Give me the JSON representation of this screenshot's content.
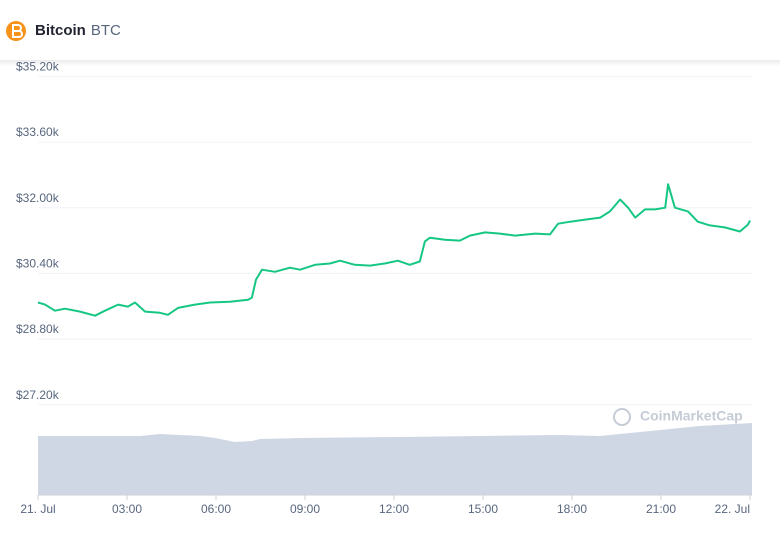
{
  "header": {
    "name": "Bitcoin",
    "symbol": "BTC"
  },
  "chart_data": {
    "type": "line",
    "watermark": "CoinMarketCap",
    "x": [
      0,
      0.24,
      0.57,
      0.91,
      1.42,
      1.92,
      2.26,
      2.7,
      3.03,
      3.27,
      3.61,
      4.11,
      4.38,
      4.72,
      5.29,
      5.8,
      6.47,
      7.08,
      7.21,
      7.35,
      7.55,
      7.99,
      8.49,
      8.83,
      9.34,
      9.84,
      10.18,
      10.68,
      11.19,
      11.69,
      12.13,
      12.53,
      12.87,
      13.04,
      13.21,
      13.72,
      14.22,
      14.56,
      15.07,
      15.57,
      16.08,
      16.76,
      17.26,
      17.53,
      17.94,
      18.44,
      18.95,
      19.28,
      19.62,
      19.89,
      20.13,
      20.46,
      20.8,
      21.14,
      21.24,
      21.47,
      21.91,
      22.24,
      22.65,
      23.15,
      23.66,
      23.93,
      24
    ],
    "series": [
      {
        "color": "#16c784",
        "values": [
          29690,
          29640,
          29490,
          29540,
          29470,
          29370,
          29490,
          29640,
          29590,
          29690,
          29470,
          29440,
          29390,
          29560,
          29640,
          29690,
          29710,
          29760,
          29810,
          30250,
          30490,
          30440,
          30540,
          30490,
          30610,
          30640,
          30710,
          30610,
          30590,
          30640,
          30710,
          30610,
          30690,
          31180,
          31270,
          31220,
          31200,
          31320,
          31400,
          31370,
          31320,
          31370,
          31350,
          31610,
          31660,
          31710,
          31760,
          31910,
          32200,
          32000,
          31760,
          31960,
          31960,
          32000,
          32570,
          32000,
          31910,
          31660,
          31570,
          31520,
          31420,
          31590,
          31690
        ]
      }
    ],
    "xlim": [
      0,
      24
    ],
    "xticks": [
      {
        "value": 0,
        "label": "21. Jul"
      },
      {
        "value": 3,
        "label": "03:00"
      },
      {
        "value": 6,
        "label": "06:00"
      },
      {
        "value": 9,
        "label": "09:00"
      },
      {
        "value": 12,
        "label": "12:00"
      },
      {
        "value": 15,
        "label": "15:00"
      },
      {
        "value": 18,
        "label": "18:00"
      },
      {
        "value": 21,
        "label": "21:00"
      },
      {
        "value": 24,
        "label": "22. Jul"
      }
    ],
    "ylim": [
      25000,
      35600
    ],
    "yticks": [
      {
        "value": 27200,
        "label": "$27.20k"
      },
      {
        "value": 28800,
        "label": "$28.80k"
      },
      {
        "value": 30400,
        "label": "$30.40k"
      },
      {
        "value": 32000,
        "label": "$32.00k"
      },
      {
        "value": 33600,
        "label": "$33.60k"
      },
      {
        "value": 35200,
        "label": "$35.20k"
      }
    ],
    "grid": true
  }
}
